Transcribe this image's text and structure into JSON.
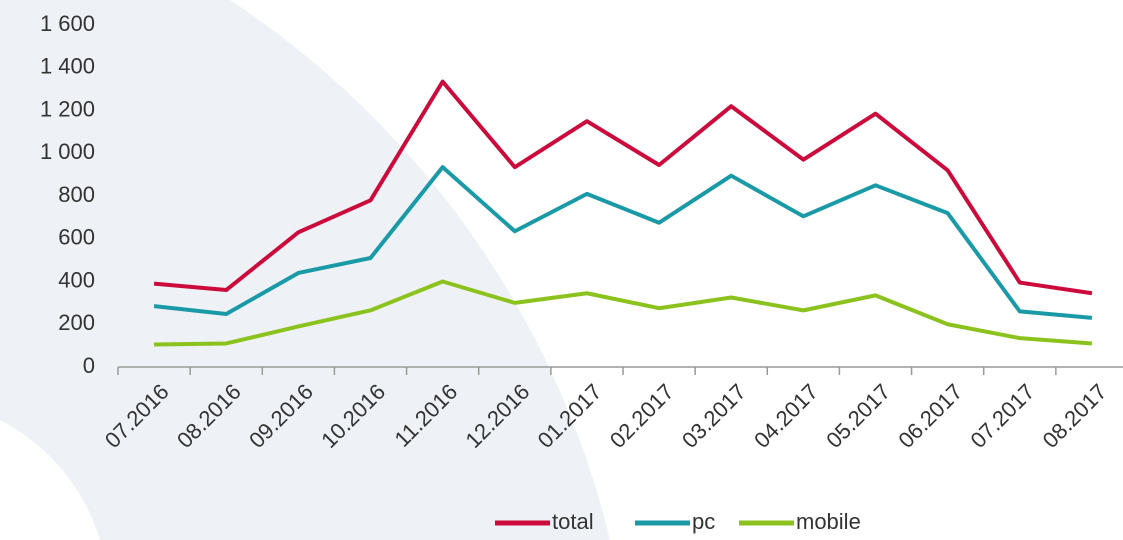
{
  "chart_data": {
    "type": "line",
    "categories": [
      "07.2016",
      "08.2016",
      "09.2016",
      "10.2016",
      "11.2016",
      "12.2016",
      "01.2017",
      "02.2017",
      "03.2017",
      "04.2017",
      "05.2017",
      "06.2017",
      "07.2017",
      "08.2017"
    ],
    "series": [
      {
        "name": "total",
        "color": "#cc0a3c",
        "values": [
          390,
          360,
          630,
          780,
          1335,
          935,
          1150,
          945,
          1220,
          970,
          1185,
          920,
          395,
          345
        ]
      },
      {
        "name": "pc",
        "color": "#1a9aa6",
        "values": [
          285,
          248,
          440,
          510,
          935,
          635,
          810,
          675,
          895,
          705,
          850,
          720,
          260,
          230
        ]
      },
      {
        "name": "mobile",
        "color": "#8cc21e",
        "values": [
          105,
          110,
          190,
          265,
          400,
          300,
          345,
          275,
          325,
          265,
          335,
          200,
          135,
          110
        ]
      }
    ],
    "ylim": [
      0,
      1600
    ],
    "yticks": [
      0,
      200,
      400,
      600,
      800,
      {
        "value": 1000,
        "label": "1 000"
      },
      {
        "value": 1200,
        "label": "1 200"
      },
      {
        "value": 1400,
        "label": "1 400"
      },
      {
        "value": 1600,
        "label": "1 600"
      }
    ],
    "grid": false,
    "legend": "bottom"
  }
}
